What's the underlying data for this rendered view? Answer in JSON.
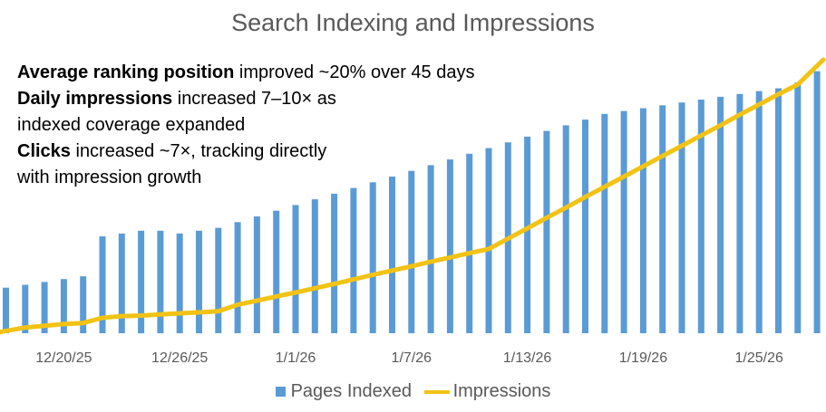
{
  "chart_data": {
    "type": "bar+line",
    "title": "Search Indexing and Impressions",
    "categories": [
      "12/17/25",
      "12/18/25",
      "12/19/25",
      "12/20/25",
      "12/21/25",
      "12/22/25",
      "12/23/25",
      "12/24/25",
      "12/25/25",
      "12/26/25",
      "12/27/25",
      "12/28/25",
      "12/29/25",
      "12/30/25",
      "12/31/25",
      "1/1/26",
      "1/2/26",
      "1/3/26",
      "1/4/26",
      "1/5/26",
      "1/6/26",
      "1/7/26",
      "1/8/26",
      "1/9/26",
      "1/10/26",
      "1/11/26",
      "1/12/26",
      "1/13/26",
      "1/14/26",
      "1/15/26",
      "1/16/26",
      "1/17/26",
      "1/18/26",
      "1/19/26",
      "1/20/26",
      "1/21/26",
      "1/22/26",
      "1/23/26",
      "1/24/26",
      "1/25/26",
      "1/26/26",
      "1/27/26",
      "1/28/26"
    ],
    "tick_labels": [
      {
        "index": 3,
        "label": "12/20/25"
      },
      {
        "index": 9,
        "label": "12/26/25"
      },
      {
        "index": 15,
        "label": "1/1/26"
      },
      {
        "index": 21,
        "label": "1/7/26"
      },
      {
        "index": 27,
        "label": "1/13/26"
      },
      {
        "index": 33,
        "label": "1/19/26"
      },
      {
        "index": 39,
        "label": "1/25/26"
      }
    ],
    "series": [
      {
        "name": "Pages Indexed",
        "type": "bar",
        "color": "#5B9BD5",
        "values": [
          16,
          17,
          18,
          19,
          20,
          34,
          35,
          36,
          36,
          35,
          36,
          37,
          39,
          41,
          43,
          45,
          47,
          49,
          51,
          53,
          55,
          57,
          59,
          61,
          63,
          65,
          67,
          69,
          71,
          73,
          75,
          77,
          78,
          79,
          80,
          81,
          82,
          83,
          84,
          85,
          86,
          88,
          92
        ]
      },
      {
        "name": "Impressions",
        "type": "line",
        "color": "#F2C314",
        "values": [
          0.4,
          2.0,
          2.6,
          3.2,
          3.6,
          5.4,
          6.0,
          6.2,
          6.6,
          7.0,
          7.3,
          7.7,
          10.0,
          11.4,
          12.9,
          14.3,
          15.8,
          17.3,
          18.9,
          20.5,
          22.0,
          23.5,
          25.1,
          26.6,
          28.1,
          29.6,
          33.2,
          36.8,
          40.5,
          44.1,
          47.8,
          51.4,
          55.0,
          58.6,
          62.2,
          65.8,
          69.4,
          73.0,
          76.7,
          80.3,
          83.9,
          87.3,
          96.0
        ]
      }
    ],
    "y_range": [
      0,
      96
    ],
    "grid": false,
    "legend_position": "bottom",
    "annotations": [
      {
        "bold": "Average ranking position",
        "text": " improved ~20% over 45 days"
      },
      {
        "bold": "Daily impressions",
        "text": " increased 7–10× as"
      },
      {
        "bold": "",
        "text": "indexed coverage expanded"
      },
      {
        "bold": "Clicks",
        "text": " increased ~7×, tracking directly"
      },
      {
        "bold": "",
        "text": "with impression growth"
      }
    ]
  }
}
